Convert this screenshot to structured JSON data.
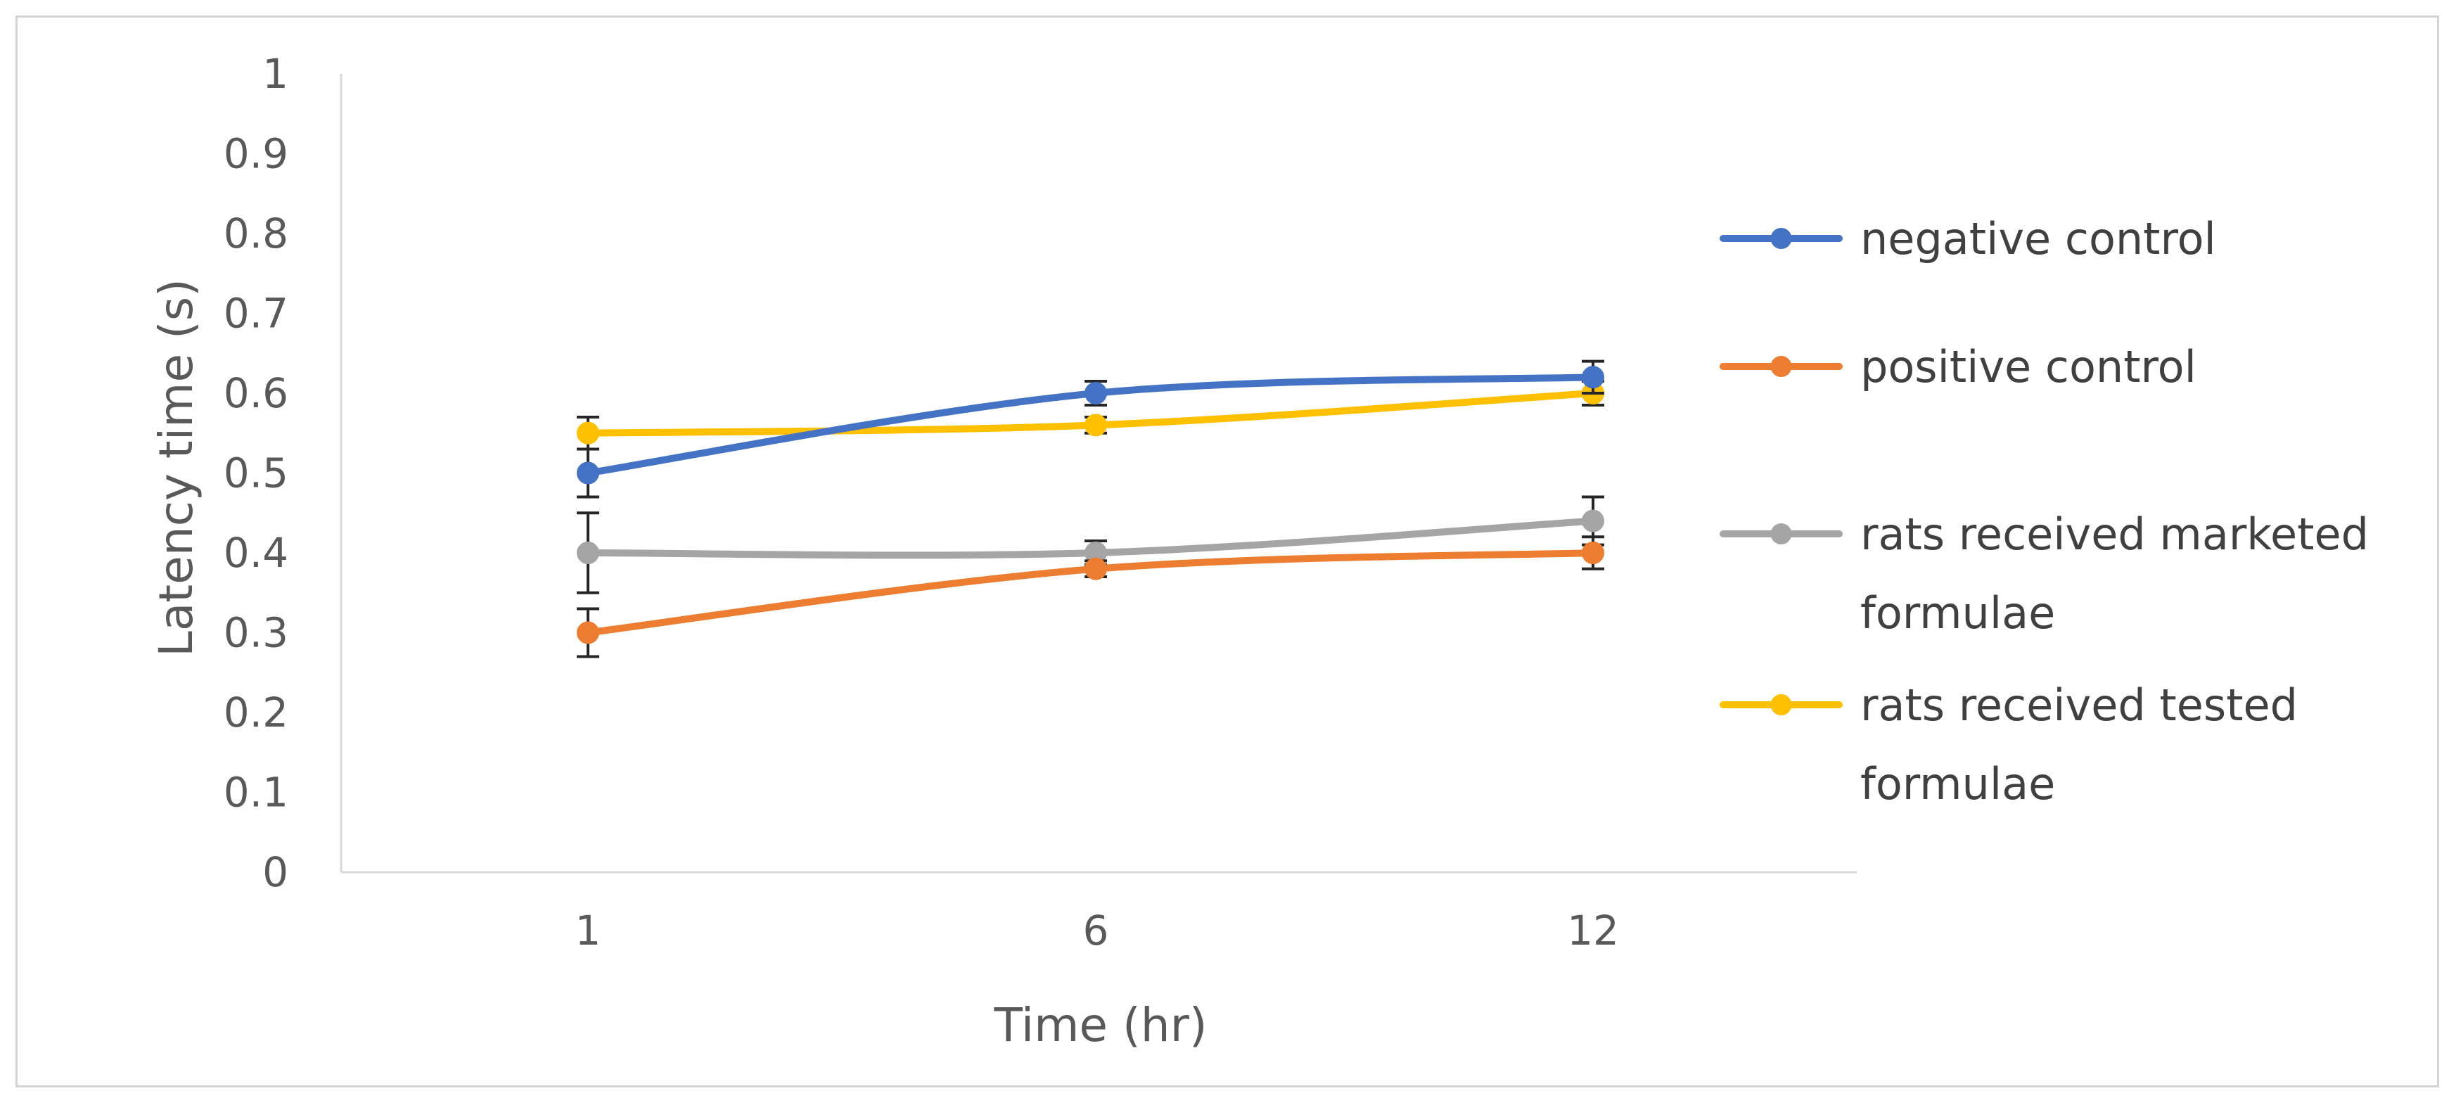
{
  "chart_data": {
    "type": "line",
    "title": "",
    "xlabel": "Time (hr)",
    "ylabel": "Latency time (s)",
    "categories": [
      "1",
      "6",
      "12"
    ],
    "ylim": [
      0,
      1
    ],
    "yticks": [
      "0",
      "0.1",
      "0.2",
      "0.3",
      "0.4",
      "0.5",
      "0.6",
      "0.7",
      "0.8",
      "0.9",
      "1"
    ],
    "grid": false,
    "legend_position": "right",
    "series": [
      {
        "name": "negative control",
        "color": "#4472C4",
        "values": [
          0.5,
          0.6,
          0.62
        ],
        "errors": [
          0.03,
          0.015,
          0.02
        ]
      },
      {
        "name": "positive control",
        "color": "#ED7D31",
        "values": [
          0.3,
          0.38,
          0.4
        ],
        "errors": [
          0.03,
          0.01,
          0.02
        ]
      },
      {
        "name": "rats received marketed formulae",
        "color": "#A5A5A5",
        "values": [
          0.4,
          0.4,
          0.44
        ],
        "errors": [
          0.05,
          0.015,
          0.03
        ]
      },
      {
        "name": "rats received tested formulae",
        "color": "#FFC000",
        "values": [
          0.55,
          0.56,
          0.6
        ],
        "errors": [
          0.02,
          0.01,
          0.015
        ]
      }
    ]
  }
}
